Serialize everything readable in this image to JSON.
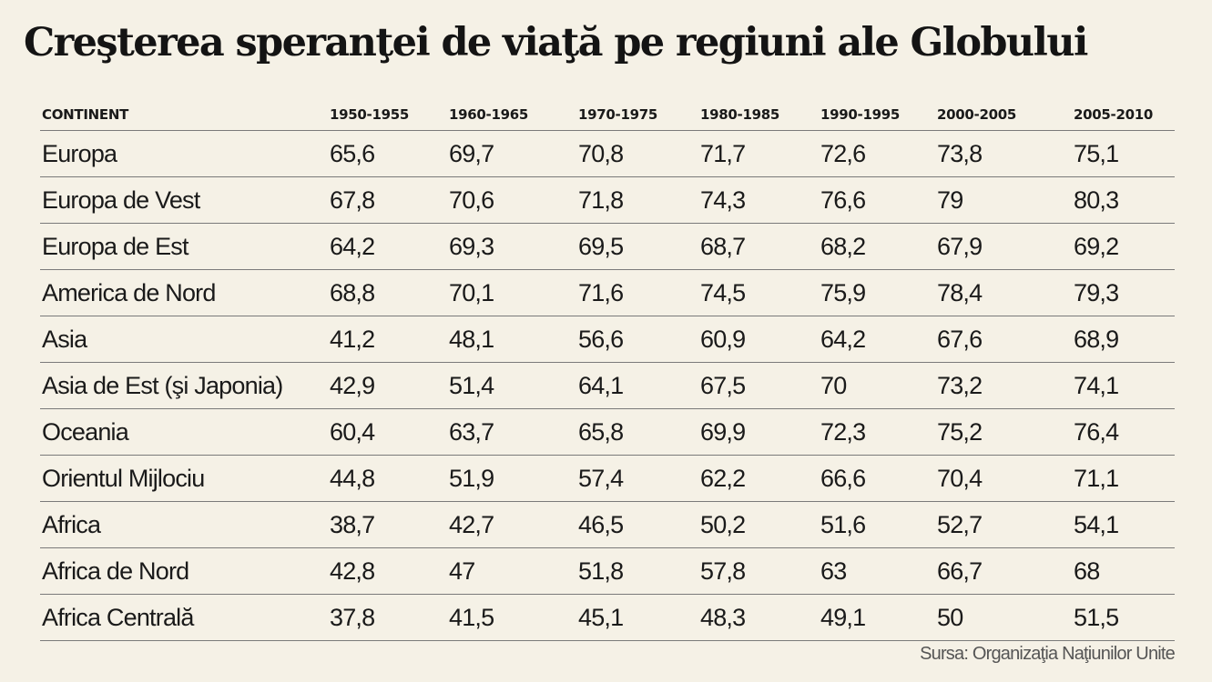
{
  "title": "Creşterea speranţei de viaţă pe regiuni ale Globului",
  "table": {
    "headers": [
      "CONTINENT",
      "1950-1955",
      "1960-1965",
      "1970-1975",
      "1980-1985",
      "1990-1995",
      "2000-2005",
      "2005-2010"
    ],
    "rows": [
      [
        "Europa",
        "65,6",
        "69,7",
        "70,8",
        "71,7",
        "72,6",
        "73,8",
        "75,1"
      ],
      [
        "Europa de Vest",
        "67,8",
        "70,6",
        "71,8",
        "74,3",
        "76,6",
        "79",
        "80,3"
      ],
      [
        "Europa de Est",
        "64,2",
        "69,3",
        "69,5",
        "68,7",
        "68,2",
        "67,9",
        "69,2"
      ],
      [
        "America de Nord",
        "68,8",
        "70,1",
        "71,6",
        "74,5",
        "75,9",
        "78,4",
        "79,3"
      ],
      [
        "Asia",
        "41,2",
        "48,1",
        "56,6",
        "60,9",
        "64,2",
        "67,6",
        "68,9"
      ],
      [
        "Asia de Est (şi Japonia)",
        "42,9",
        "51,4",
        "64,1",
        "67,5",
        "70",
        "73,2",
        "74,1"
      ],
      [
        "Oceania",
        "60,4",
        "63,7",
        "65,8",
        "69,9",
        "72,3",
        "75,2",
        "76,4"
      ],
      [
        "Orientul Mijlociu",
        "44,8",
        "51,9",
        "57,4",
        "62,2",
        "66,6",
        "70,4",
        "71,1"
      ],
      [
        "Africa",
        "38,7",
        "42,7",
        "46,5",
        "50,2",
        "51,6",
        "52,7",
        "54,1"
      ],
      [
        "Africa de Nord",
        "42,8",
        "47",
        "51,8",
        "57,8",
        "63",
        "66,7",
        "68"
      ],
      [
        "Africa Centrală",
        "37,8",
        "41,5",
        "45,1",
        "48,3",
        "49,1",
        "50",
        "51,5"
      ]
    ]
  },
  "source": "Sursa: Organizaţia Naţiunilor Unite"
}
